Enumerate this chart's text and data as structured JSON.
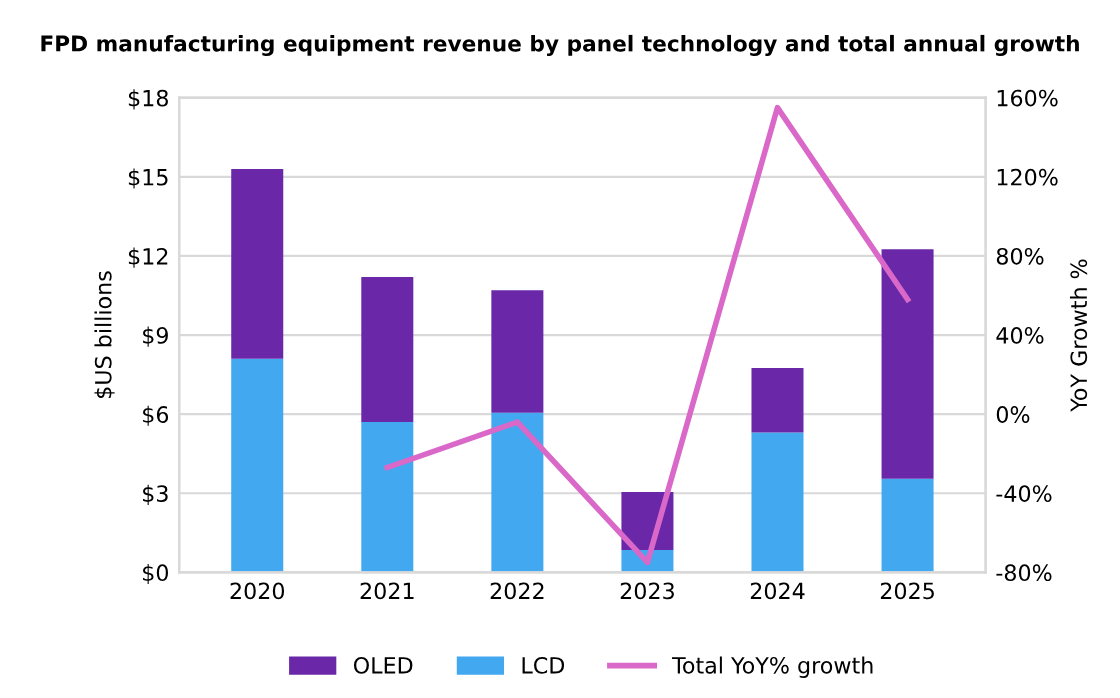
{
  "chart_data": {
    "type": "bar",
    "title": "FPD manufacturing equipment revenue by panel technology and total annual growth",
    "categories": [
      "2020",
      "2021",
      "2022",
      "2023",
      "2024",
      "2025"
    ],
    "stacked": true,
    "series": [
      {
        "name": "OLED",
        "color": "#6a28a8",
        "values": [
          7.2,
          5.5,
          4.65,
          2.2,
          2.45,
          8.7
        ]
      },
      {
        "name": "LCD",
        "color": "#42a8f0",
        "values": [
          8.1,
          5.7,
          6.05,
          0.85,
          5.3,
          3.55
        ]
      },
      {
        "name": "Total YoY% growth",
        "type": "line",
        "axis": "y2",
        "color": "#d968c8",
        "values": [
          null,
          -27,
          -4,
          -75,
          155,
          58
        ]
      }
    ],
    "ylabel": "$US billions",
    "y2label": "YoY Growth %",
    "ylim": [
      0,
      18
    ],
    "yticks": [
      {
        "value": 0,
        "label": "$0"
      },
      {
        "value": 3,
        "label": "$3"
      },
      {
        "value": 6,
        "label": "$6"
      },
      {
        "value": 9,
        "label": "$9"
      },
      {
        "value": 12,
        "label": "$12"
      },
      {
        "value": 15,
        "label": "$15"
      },
      {
        "value": 18,
        "label": "$18"
      }
    ],
    "y2lim": [
      -80,
      160
    ],
    "y2ticks": [
      {
        "value": -80,
        "label": "-80%"
      },
      {
        "value": -40,
        "label": "-40%"
      },
      {
        "value": 0,
        "label": "0%"
      },
      {
        "value": 40,
        "label": "40%"
      },
      {
        "value": 80,
        "label": "80%"
      },
      {
        "value": 120,
        "label": "120%"
      },
      {
        "value": 160,
        "label": "160%"
      }
    ],
    "grid": "y",
    "legend": "bottom"
  }
}
